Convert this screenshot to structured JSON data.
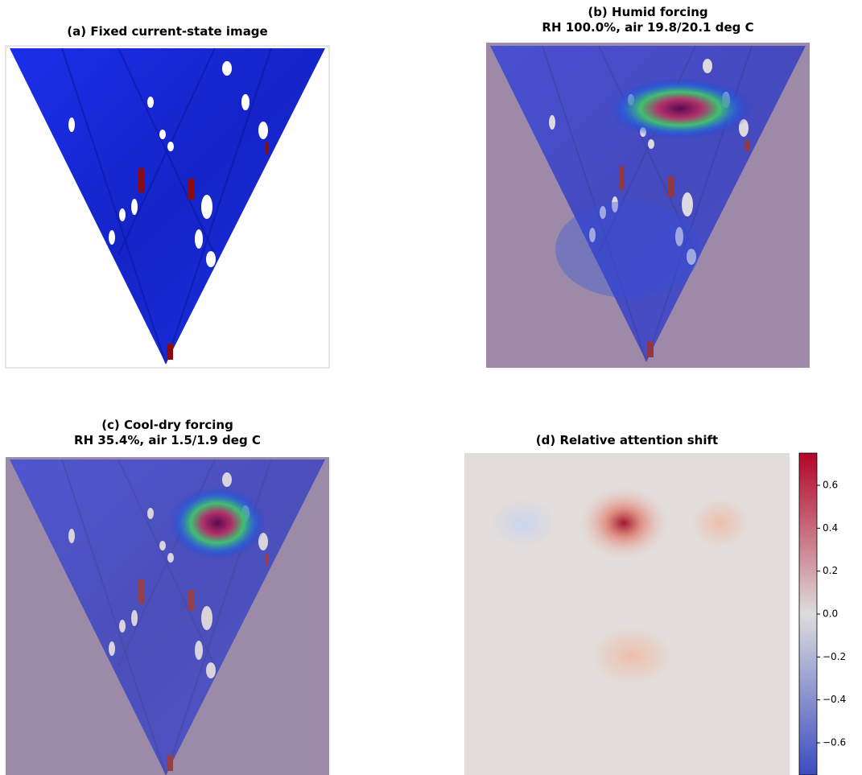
{
  "chart_data": [
    {
      "type": "image",
      "title": "(a) Fixed current-state image"
    },
    {
      "type": "image",
      "title": "(b) Humid forcing",
      "subtitle": "RH 100.0%, air 19.8/20.1 deg C"
    },
    {
      "type": "image",
      "title": "(c) Cool-dry forcing",
      "subtitle": "RH 35.4%, air 1.5/1.9 deg C"
    },
    {
      "type": "heatmap",
      "title": "(d) Relative attention shift",
      "colors": [
        "#3b4cc0",
        "#dddddd",
        "#b40426"
      ],
      "clim": [
        -0.75,
        0.75
      ],
      "cticks": [
        0.6,
        0.4,
        0.2,
        {
          "value": 0,
          "label": "0.0"
        },
        {
          "value": -0.2,
          "label": "−0.2"
        },
        {
          "value": -0.4,
          "label": "−0.4"
        },
        {
          "value": -0.6,
          "label": "−0.6"
        }
      ]
    }
  ]
}
